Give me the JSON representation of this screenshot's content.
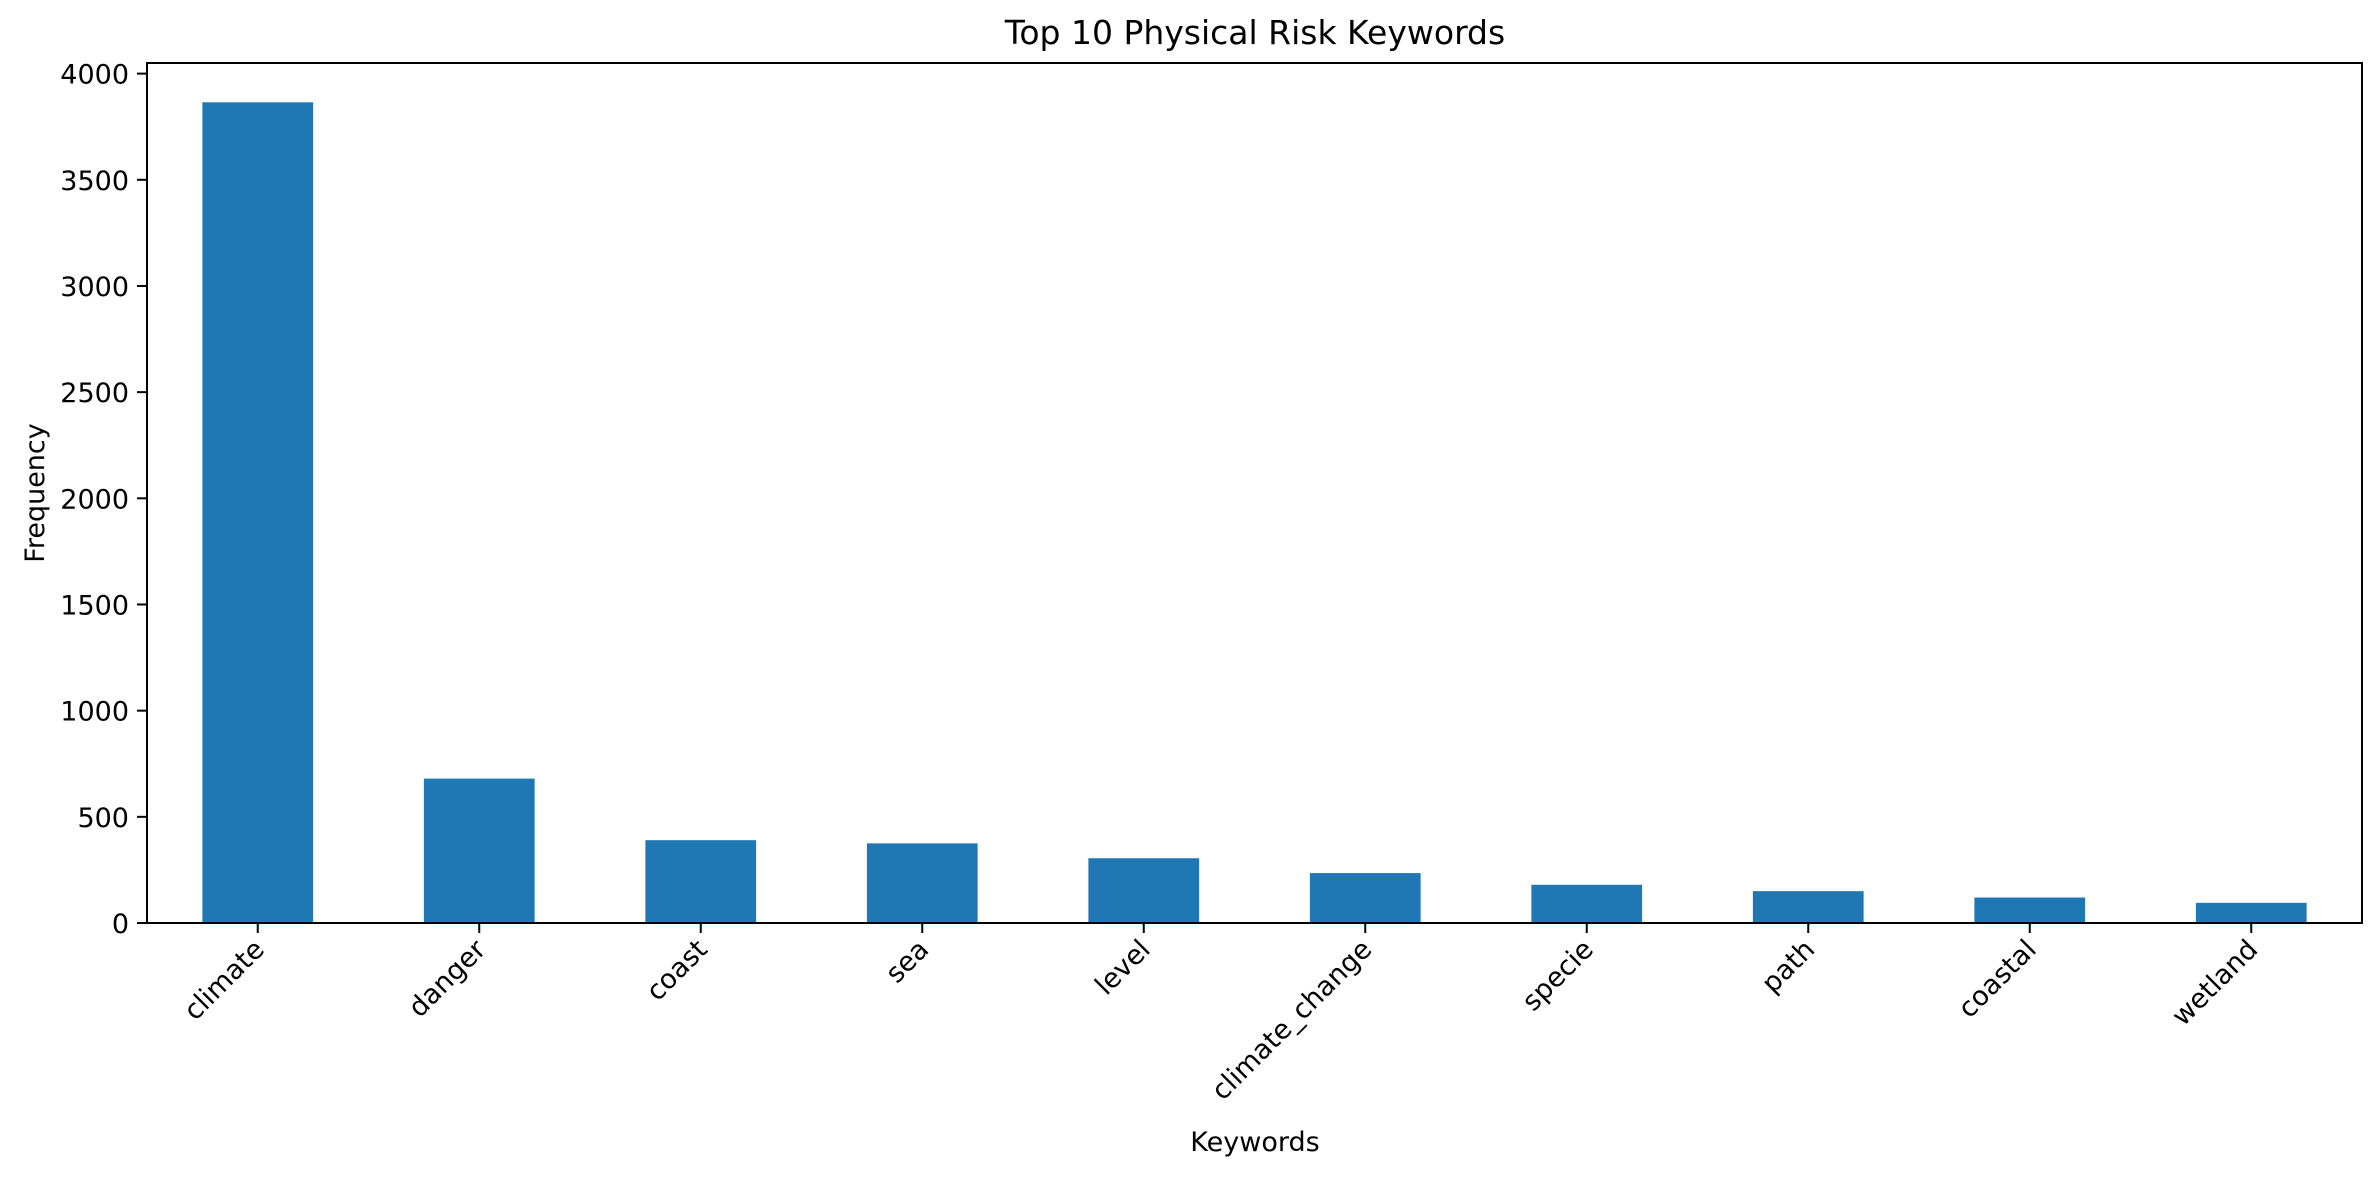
{
  "chart_data": {
    "type": "bar",
    "title": "Top 10 Physical Risk Keywords",
    "xlabel": "Keywords",
    "ylabel": "Frequency",
    "categories": [
      "climate",
      "danger",
      "coast",
      "sea",
      "level",
      "climate_change",
      "specie",
      "path",
      "coastal",
      "wetland"
    ],
    "values": [
      3865,
      680,
      390,
      375,
      305,
      235,
      180,
      150,
      120,
      95
    ],
    "ylim": [
      0,
      4050
    ],
    "yticks": [
      0,
      500,
      1000,
      1500,
      2000,
      2500,
      3000,
      3500,
      4000
    ],
    "bar_color": "#1f77b4",
    "x_tick_rotation": -45,
    "grid": false,
    "legend": false
  }
}
